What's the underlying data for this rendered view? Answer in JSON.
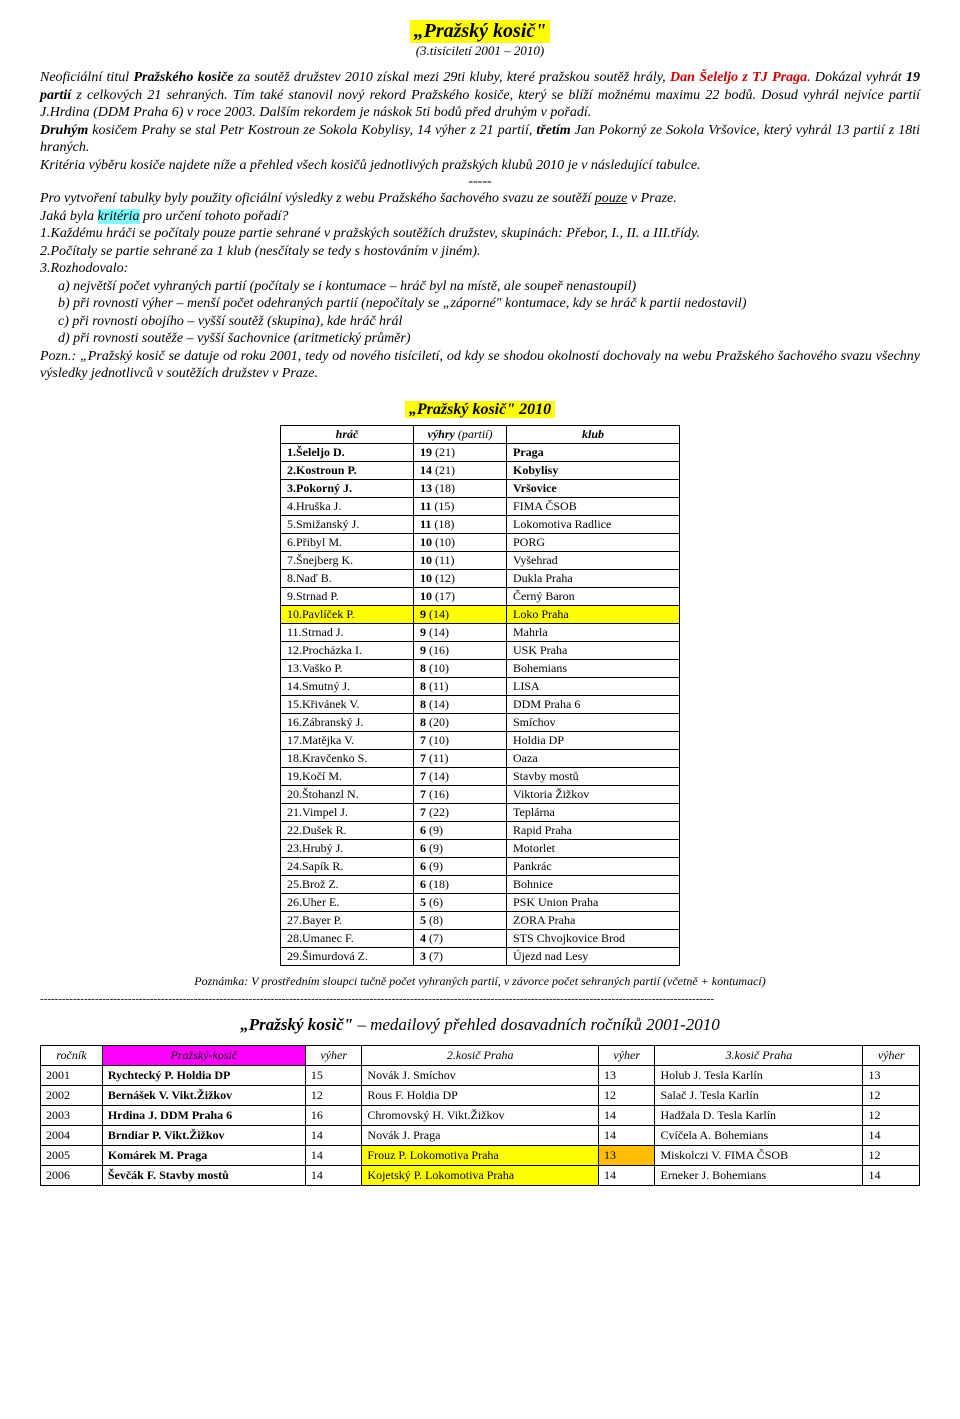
{
  "title": "„Pražský kosič\"",
  "subtitle": "(3.tisíciletí 2001 – 2010)",
  "paragraphs": {
    "p1a": "Neoficiální titul ",
    "p1b": "Pražského kosiče",
    "p1c": " za soutěž družstev 2010 získal mezi 29ti kluby, které pražskou soutěž hrály, ",
    "p1d": "Dan Šeleljo z TJ Praga",
    "p1e": ". Dokázal vyhrát ",
    "p1f": "19 partií",
    "p1g": " z celkových 21 sehraných. Tím také stanovil nový rekord Pražského kosiče, který se blíží možnému maximu 22 bodů. Dosud vyhrál nejvíce partií J.Hrdina (DDM Praha 6) v roce 2003. Dalším rekordem je náskok 5ti bodů před druhým v pořadí.",
    "p2a": "Druhým",
    "p2b": " kosičem Prahy se stal Petr Kostroun ze Sokola Kobylisy, 14 výher z 21 partií, ",
    "p2c": "třetím",
    "p2d": " Jan Pokorný ze Sokola Vršovice, který vyhrál 13 partií z 18ti hraných.",
    "p3": "Kritéria výběru kosiče najdete níže a přehled všech kosičů jednotlivých pražských klubů 2010  je v následující tabulce.",
    "sep": "-----",
    "p4a": "Pro vytvoření tabulky byly použity oficiální výsledky z webu Pražského šachového svazu ze soutěží ",
    "p4b": "pouze",
    "p4c": " v Praze.",
    "p5a": "Jaká byla ",
    "p5b": "kritéria",
    "p5c": " pro určení tohoto pořadí?",
    "l1": "1.Každému hráči se počítaly pouze partie sehrané v pražských soutěžích družstev, skupinách:  Přebor, I., II. a III.třídy.",
    "l2": "2.Počítaly se partie sehrané za 1 klub (nesčítaly se tedy s hostováním v jiném).",
    "l3": "3.Rozhodovalo:",
    "l3a": "a) největší počet vyhraných partií (počítaly se i kontumace – hráč byl na místě, ale soupeř nenastoupil)",
    "l3b": "b) při rovnosti výher – menší počet odehraných partií (nepočítaly se „záporné\"  kontumace, kdy se hráč k partii nedostavil)",
    "l3c": "c) při rovnosti obojího – vyšší soutěž (skupina), kde hráč hrál",
    "l3d": "d) při rovnosti soutěže – vyšší šachovnice (aritmetický průměr)",
    "p6": "Pozn.: „Pražský kosič se datuje od roku 2001, tedy od nového tisíciletí, od kdy se shodou okolností dochovaly na webu Pražského šachového svazu všechny výsledky jednotlivců v soutěžích družstev v Praze."
  },
  "tableTitle": "„Pražský kosič\" 2010",
  "tableHeaders": {
    "hrac": "hráč",
    "vyhry": "výhry",
    "vyhry2": "(partií)",
    "klub": "klub"
  },
  "rows": [
    {
      "rank": "1.",
      "name": "Šeleljo D.",
      "wins": "19",
      "games": "(21)",
      "club": "Praga",
      "bold": true,
      "magenta": true
    },
    {
      "rank": "2.",
      "name": "Kostroun P.",
      "wins": "14",
      "games": "(21)",
      "club": "Kobylisy",
      "bold": true
    },
    {
      "rank": "3.",
      "name": "Pokorný J.",
      "wins": "13",
      "games": "(18)",
      "club": "Vršovice",
      "bold": true
    },
    {
      "rank": "4.",
      "name": "Hruška J.",
      "wins": "11",
      "games": "(15)",
      "club": "FIMA ČSOB"
    },
    {
      "rank": "5.",
      "name": "Smižanský J.",
      "wins": "11",
      "games": "(18)",
      "club": "Lokomotiva Radlice"
    },
    {
      "rank": "6.",
      "name": "Přibyl M.",
      "wins": "10",
      "games": "(10)",
      "club": "PORG"
    },
    {
      "rank": "7.",
      "name": "Šnejberg K.",
      "wins": "10",
      "games": "(11)",
      "club": "Vyšehrad"
    },
    {
      "rank": "8.",
      "name": "Naď B.",
      "wins": "10",
      "games": "(12)",
      "club": "Dukla Praha"
    },
    {
      "rank": "9.",
      "name": "Strnad P.",
      "wins": "10",
      "games": "(17)",
      "club": "Černý Baron"
    },
    {
      "rank": "10.",
      "name": "Pavlíček P.",
      "wins": "9",
      "games": "(14)",
      "club": "Loko Praha",
      "yellow": true
    },
    {
      "rank": "11.",
      "name": "Strnad J.",
      "wins": "9",
      "games": "(14)",
      "club": "Mahrla"
    },
    {
      "rank": "12.",
      "name": "Procházka I.",
      "wins": "9",
      "games": "(16)",
      "club": "USK Praha"
    },
    {
      "rank": "13.",
      "name": "Vaško P.",
      "wins": "8",
      "games": "(10)",
      "club": "Bohemians"
    },
    {
      "rank": "14.",
      "name": "Smutný J.",
      "wins": "8",
      "games": "(11)",
      "club": "LISA"
    },
    {
      "rank": "15.",
      "name": "Křivánek V.",
      "wins": "8",
      "games": "(14)",
      "club": "DDM Praha 6"
    },
    {
      "rank": "16.",
      "name": "Zábranský J.",
      "wins": "8",
      "games": "(20)",
      "club": "Smíchov"
    },
    {
      "rank": "17.",
      "name": "Matějka V.",
      "wins": "7",
      "games": "(10)",
      "club": "Holdia DP"
    },
    {
      "rank": "18.",
      "name": "Kravčenko S.",
      "wins": "7",
      "games": "(11)",
      "club": "Oaza"
    },
    {
      "rank": "19.",
      "name": "Kočí M.",
      "wins": "7",
      "games": "(14)",
      "club": "Stavby mostů"
    },
    {
      "rank": "20.",
      "name": "Štohanzl N.",
      "wins": "7",
      "games": "(16)",
      "club": "Viktoria Žižkov"
    },
    {
      "rank": "21.",
      "name": "Vimpel J.",
      "wins": "7",
      "games": "(22)",
      "club": "Teplárna"
    },
    {
      "rank": "22.",
      "name": "Dušek R.",
      "wins": "6",
      "games": "(9)",
      "club": "Rapid Praha"
    },
    {
      "rank": "23.",
      "name": "Hrubý J.",
      "wins": "6",
      "games": "(9)",
      "club": "Motorlet"
    },
    {
      "rank": "24.",
      "name": "Sapík R.",
      "wins": "6",
      "games": "(9)",
      "club": "Pankrác"
    },
    {
      "rank": "25.",
      "name": "Brož Z.",
      "wins": "6",
      "games": "(18)",
      "club": "Bohnice"
    },
    {
      "rank": "26.",
      "name": "Uher E.",
      "wins": "5",
      "games": "(6)",
      "club": "PSK Union Praha"
    },
    {
      "rank": "27.",
      "name": "Bayer P.",
      "wins": "5",
      "games": "(8)",
      "club": "ZORA Praha"
    },
    {
      "rank": "28.",
      "name": "Umanec F.",
      "wins": "4",
      "games": "(7)",
      "club": "STS Chvojkovice Brod"
    },
    {
      "rank": "29.",
      "name": "Šimurdová Z.",
      "wins": "3",
      "games": "(7)",
      "club": "Újezd nad Lesy"
    }
  ],
  "note": "Poznámka: V prostředním sloupci tučně počet vyhraných partií, v závorce počet sehraných partií (včetně + kontumací)",
  "medalTitle": {
    "a": "„Pražský kosič\"",
    "b": " – medailový přehled dosavadních ročníků 2001-2010"
  },
  "medalHeaders": {
    "rocnik": "ročník",
    "pk": "Pražský-kosič",
    "vyher": "výher",
    "k2": "2.kosič Praha",
    "k3": "3.kosič Praha"
  },
  "medalRows": [
    {
      "y": "2001",
      "pk": "Rychtecký P.  Holdia DP",
      "v1": "15",
      "k2": "Novák J.            Smíchov",
      "v2": "13",
      "k3": "Holub J.        Tesla Karlín",
      "v3": "13"
    },
    {
      "y": "2002",
      "pk": "Bernášek V.  Vikt.Žižkov",
      "v1": "12",
      "k2": "Rous F.            Holdia DP",
      "v2": "12",
      "k3": "Salač J.        Tesla Karlín",
      "v3": "12"
    },
    {
      "y": "2003",
      "pk": "Hrdina J.    DDM Praha 6",
      "v1": "16",
      "k2": "Chromovský H. Vikt.Žižkov",
      "v2": "14",
      "k3": "Hadžala D.   Tesla Karlín",
      "v3": "12"
    },
    {
      "y": "2004",
      "pk": "Brndiar P.   Vikt.Žižkov",
      "v1": "14",
      "k2": "Novák J.             Praga",
      "v2": "14",
      "k3": "Cvíčela A.     Bohemians",
      "v3": "14"
    },
    {
      "y": "2005",
      "pk": "Komárek M.  Praga",
      "v1": "14",
      "k2": "Frouz P.     Lokomotiva Praha",
      "v2": "13",
      "k3": "Miskolczi V.  FIMA ČSOB",
      "v3": "12",
      "hl2": "y",
      "hl2v": "o"
    },
    {
      "y": "2006",
      "pk": "Ševčák F.    Stavby mostů",
      "v1": "14",
      "k2": "Kojetský P.  Lokomotiva Praha",
      "v2": "14",
      "k3": "Erneker J.     Bohemians",
      "v3": "14",
      "hl2": "y"
    }
  ]
}
